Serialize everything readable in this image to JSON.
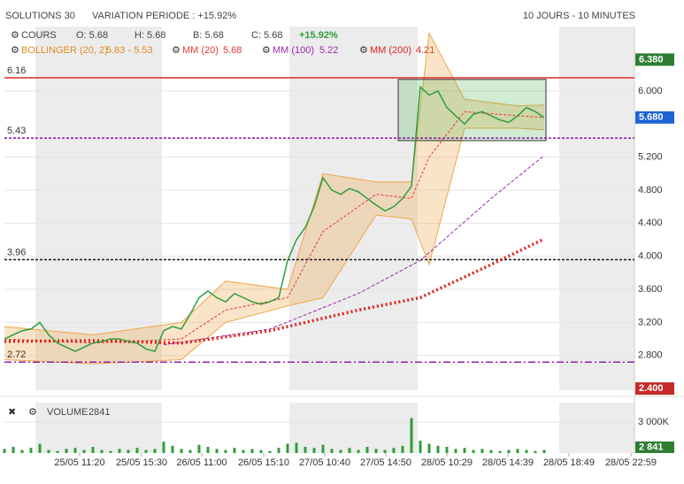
{
  "chart_data": {
    "type": "stock",
    "title": "SOLUTIONS 30",
    "subtitle": "VARIATION PERIODE : +15.92%",
    "period": "10 JOURS - 10 MINUTES",
    "legend": {
      "cours": "COURS",
      "open": "O: 5.68",
      "high": "H: 5.68",
      "low": "B: 5.68",
      "close": "C: 5.68",
      "change": "+15.92%",
      "bollinger": "BOLLINGER (20, 2)",
      "bollinger_value": "5.83 - 5.53",
      "mm20": "MM (20)",
      "mm20_value": "5.68",
      "mm100": "MM (100)",
      "mm100_value": "5.22",
      "mm200": "MM (200)",
      "mm200_value": "4.21"
    },
    "volume_label": "VOLUME",
    "volume_value": "2841",
    "xlim": [
      0,
      71.2
    ],
    "ylim": [
      2.38,
      6.78
    ],
    "yticks": [
      {
        "value": 2.8,
        "label": "2.800"
      },
      {
        "value": 3.2,
        "label": "3.200"
      },
      {
        "value": 3.6,
        "label": "3.600"
      },
      {
        "value": 4.0,
        "label": "4.000"
      },
      {
        "value": 4.4,
        "label": "4.400"
      },
      {
        "value": 4.8,
        "label": "4.800"
      },
      {
        "value": 5.2,
        "label": "5.200"
      },
      {
        "value": 6.0,
        "label": "6.000"
      }
    ],
    "xticks": [
      {
        "value": 8.5,
        "label": "25/05 11:20"
      },
      {
        "value": 15.5,
        "label": "25/05 15:30"
      },
      {
        "value": 22.3,
        "label": "26/05 11:00"
      },
      {
        "value": 29.3,
        "label": "26/05 15:10"
      },
      {
        "value": 36.2,
        "label": "27/05 10:40"
      },
      {
        "value": 43.1,
        "label": "27/05 14:50"
      },
      {
        "value": 50,
        "label": "28/05 10:29"
      },
      {
        "value": 56.9,
        "label": "28/05 14:39"
      },
      {
        "value": 63.8,
        "label": "28/05 18:49"
      },
      {
        "value": 70.8,
        "label": "28/05 22:59"
      }
    ],
    "x": [
      0,
      1,
      2,
      3,
      4,
      5,
      6,
      7,
      8,
      9,
      10,
      11,
      12,
      13,
      14,
      15,
      16,
      17,
      18,
      19,
      20,
      21,
      22,
      23,
      24,
      25,
      26,
      27,
      28,
      29,
      30,
      31,
      32,
      33,
      34,
      35,
      36,
      37,
      38,
      39,
      40,
      41,
      42,
      43,
      44,
      45,
      46,
      47,
      48,
      49,
      50,
      51,
      52,
      53,
      54,
      55,
      56,
      57,
      58,
      59,
      60,
      61
    ],
    "price": {
      "name": "COURS",
      "color": "#2e9d3a",
      "values": [
        3.0,
        3.05,
        3.1,
        3.12,
        3.2,
        3.05,
        2.95,
        2.9,
        2.85,
        2.9,
        2.95,
        2.97,
        3.0,
        3.0,
        2.97,
        2.95,
        2.88,
        2.85,
        3.1,
        3.15,
        3.12,
        3.3,
        3.5,
        3.58,
        3.5,
        3.45,
        3.55,
        3.5,
        3.45,
        3.42,
        3.45,
        3.5,
        3.95,
        4.2,
        4.35,
        4.6,
        4.95,
        4.8,
        4.75,
        4.82,
        4.78,
        4.7,
        4.62,
        4.55,
        4.6,
        4.7,
        4.85,
        6.05,
        5.95,
        6.0,
        5.8,
        5.7,
        5.6,
        5.72,
        5.75,
        5.7,
        5.65,
        5.62,
        5.7,
        5.8,
        5.75,
        5.68
      ]
    },
    "bollinger": {
      "color": "#f0a54a",
      "x": [
        0,
        10,
        20,
        25,
        32,
        36,
        42,
        46,
        48,
        52,
        58,
        61
      ],
      "upper": [
        3.15,
        3.05,
        3.2,
        3.7,
        3.6,
        5.0,
        4.9,
        4.9,
        6.7,
        5.9,
        5.82,
        5.83
      ],
      "lower": [
        2.75,
        2.7,
        2.75,
        3.2,
        3.4,
        3.5,
        4.5,
        4.45,
        3.9,
        5.55,
        5.55,
        5.53
      ]
    },
    "series": [
      {
        "name": "MM (20)",
        "color": "#e53935",
        "dash": "3,2",
        "width": 1,
        "x": [
          0,
          10,
          20,
          25,
          32,
          36,
          42,
          46,
          48,
          52,
          58,
          61
        ],
        "values": [
          3.0,
          2.95,
          3.0,
          3.35,
          3.5,
          4.3,
          4.75,
          4.7,
          5.2,
          5.75,
          5.7,
          5.68
        ]
      },
      {
        "name": "MM (100)",
        "color": "#9c27b0",
        "dash": "4,2",
        "width": 1,
        "x": [
          18,
          30,
          40,
          47,
          55,
          61
        ],
        "values": [
          2.93,
          3.12,
          3.55,
          3.95,
          4.7,
          5.22
        ]
      },
      {
        "name": "MM (200)",
        "color": "#e0201b",
        "dash": "2,3",
        "width": 3.5,
        "x": [
          0,
          10,
          20,
          30,
          40,
          47,
          55,
          61
        ],
        "values": [
          2.97,
          2.98,
          2.95,
          3.1,
          3.35,
          3.5,
          3.9,
          4.21
        ]
      }
    ],
    "levels": [
      {
        "value": 6.16,
        "label": "6.16",
        "color": "#e53935",
        "dash": "none"
      },
      {
        "value": 5.43,
        "label": "5.43",
        "color": "#8e24aa",
        "dash": "3,2"
      },
      {
        "value": 3.96,
        "label": "3.96",
        "color": "#222222",
        "dash": "3,2"
      },
      {
        "value": 2.72,
        "label": "2.72",
        "color": "#8e24aa",
        "dash": "8,3,2,3"
      }
    ],
    "badges": [
      {
        "value": 6.38,
        "label": "6.380",
        "color": "#2e7d32"
      },
      {
        "value": 5.68,
        "label": "5.680",
        "color": "#1e63d6"
      },
      {
        "value": 2.4,
        "label": "2.400",
        "color": "#c62828"
      }
    ],
    "zone": {
      "color": "#4caf50",
      "x": [
        44.5,
        61.2
      ],
      "y": [
        5.4,
        6.14
      ]
    },
    "volume": {
      "color": "#2e9d3a",
      "ylim": [
        0,
        4900000
      ],
      "yticks": [
        {
          "value": 3000000,
          "label": "3 000K"
        }
      ],
      "badge": {
        "value": 2841,
        "label": "2 841",
        "color": "#2e7d32"
      },
      "values": [
        400000,
        600000,
        300000,
        500000,
        900000,
        300000,
        200000,
        400000,
        500000,
        300000,
        600000,
        300000,
        200000,
        400000,
        300000,
        500000,
        300000,
        400000,
        1100000,
        700000,
        400000,
        300000,
        800000,
        600000,
        400000,
        300000,
        500000,
        300000,
        400000,
        300000,
        200000,
        500000,
        900000,
        1000000,
        600000,
        500000,
        800000,
        400000,
        300000,
        500000,
        300000,
        600000,
        400000,
        300000,
        500000,
        700000,
        3400000,
        1200000,
        900000,
        700000,
        600000,
        400000,
        500000,
        300000,
        400000,
        300000,
        200000,
        300000,
        400000,
        300000,
        200000,
        300000
      ]
    }
  }
}
